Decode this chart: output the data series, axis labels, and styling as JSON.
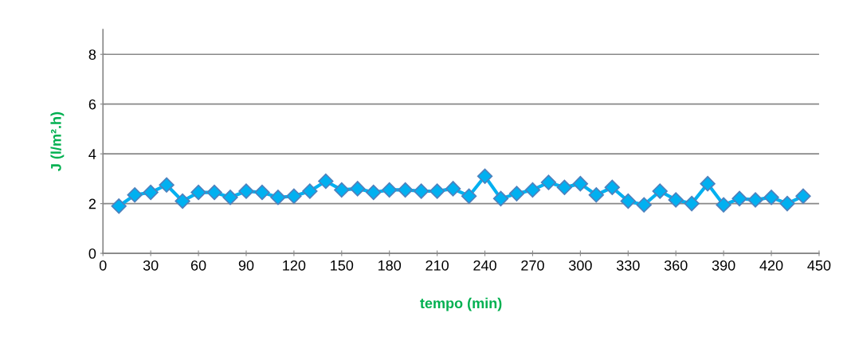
{
  "chart_data": {
    "type": "line",
    "xlabel": "tempo (min)",
    "ylabel": "J (l/m².h)",
    "x": [
      10,
      20,
      30,
      40,
      50,
      60,
      70,
      80,
      90,
      100,
      110,
      120,
      130,
      140,
      150,
      160,
      170,
      180,
      190,
      200,
      210,
      220,
      230,
      240,
      250,
      260,
      270,
      280,
      290,
      300,
      310,
      320,
      330,
      340,
      350,
      360,
      370,
      380,
      390,
      400,
      410,
      420,
      430,
      440
    ],
    "series": [
      {
        "color": "#00b0f0",
        "values": [
          1.9,
          2.35,
          2.45,
          2.75,
          2.1,
          2.45,
          2.45,
          2.25,
          2.5,
          2.45,
          2.25,
          2.3,
          2.5,
          2.9,
          2.55,
          2.6,
          2.45,
          2.55,
          2.55,
          2.5,
          2.5,
          2.6,
          2.3,
          3.1,
          2.2,
          2.4,
          2.55,
          2.85,
          2.65,
          2.8,
          2.35,
          2.65,
          2.1,
          1.95,
          2.5,
          2.15,
          2.0,
          2.8,
          1.95,
          2.2,
          2.15,
          2.25,
          2.0,
          2.3
        ]
      }
    ],
    "xlim": [
      0,
      450
    ],
    "xticks": [
      0,
      30,
      60,
      90,
      120,
      150,
      180,
      210,
      240,
      270,
      300,
      330,
      360,
      390,
      420,
      450
    ],
    "ylim": [
      0,
      9
    ],
    "yticks": [
      0,
      2,
      4,
      6,
      8
    ],
    "grid": "y",
    "marker": "diamond",
    "line_style": "solid",
    "legend": false
  }
}
